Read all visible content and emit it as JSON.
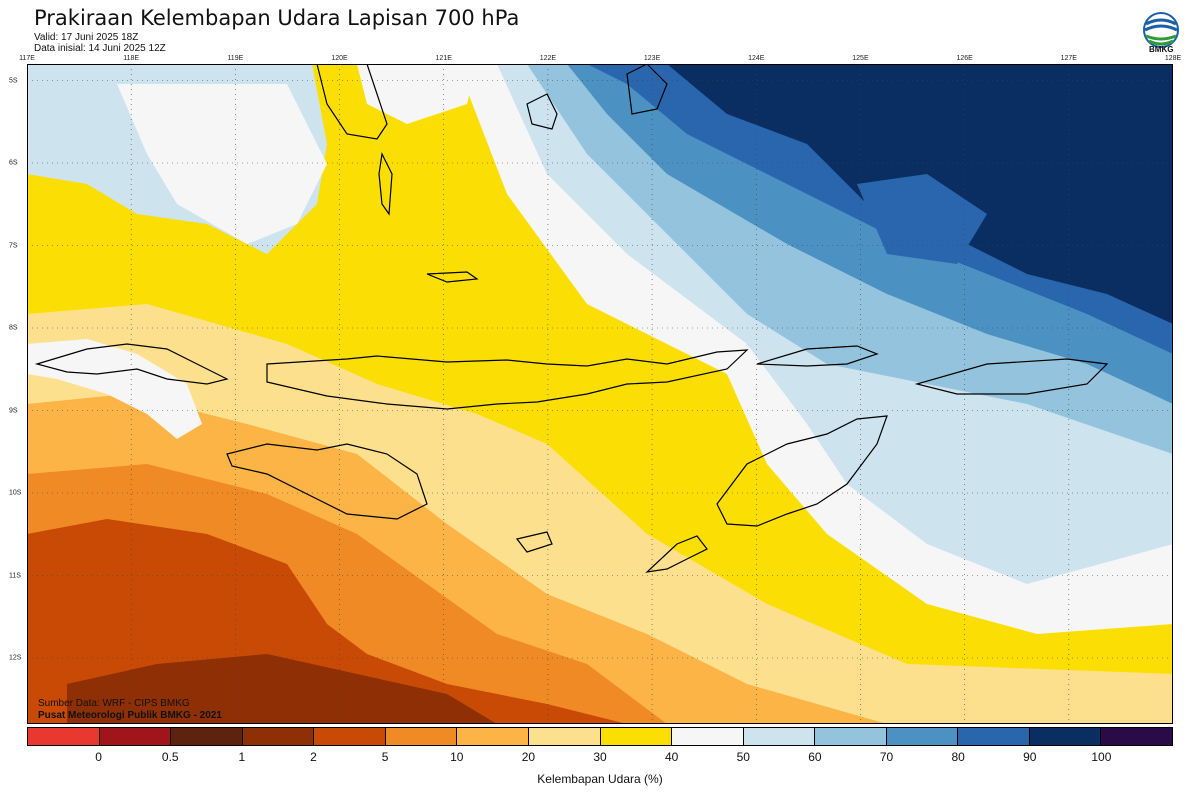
{
  "header": {
    "title": "Prakiraan Kelembapan Udara Lapisan 700 hPa",
    "valid": "Valid: 17 Juni 2025 18Z",
    "initial": "Data inisial: 14 Juni 2025 12Z"
  },
  "logo": {
    "icon": "bmkg-logo-icon",
    "text": "BMKG"
  },
  "axes": {
    "lon_labels": [
      "117E",
      "118E",
      "119E",
      "120E",
      "121E",
      "122E",
      "123E",
      "124E",
      "125E",
      "126E",
      "127E",
      "128E"
    ],
    "lat_labels": [
      "5S",
      "6S",
      "7S",
      "8S",
      "9S",
      "10S",
      "11S",
      "12S"
    ],
    "lon_range": [
      117,
      128
    ],
    "lat_range": [
      -4.8,
      -12.8
    ],
    "grid": true
  },
  "credits": {
    "source": "Sumber Data: WRF - CIPS BMKG",
    "org": "Pusat Meteorologi Publik BMKG - 2021"
  },
  "colorbar": {
    "title": "Kelembapan Udara (%)",
    "colors": [
      "#e8382f",
      "#a0141a",
      "#5e230f",
      "#8e2f05",
      "#c84a04",
      "#f08a24",
      "#fbb445",
      "#fde08e",
      "#fbdf04",
      "#f6f6f6",
      "#cde3ee",
      "#93c3dd",
      "#4b91c2",
      "#2a66ae",
      "#0b2e62",
      "#2a0a47"
    ],
    "ticks": [
      "0",
      "0.5",
      "1",
      "2",
      "5",
      "10",
      "20",
      "30",
      "40",
      "50",
      "60",
      "70",
      "80",
      "90",
      "100"
    ]
  },
  "map_colors": {
    "ocean_default": "#fbdf04",
    "land_outline": "#000000"
  }
}
